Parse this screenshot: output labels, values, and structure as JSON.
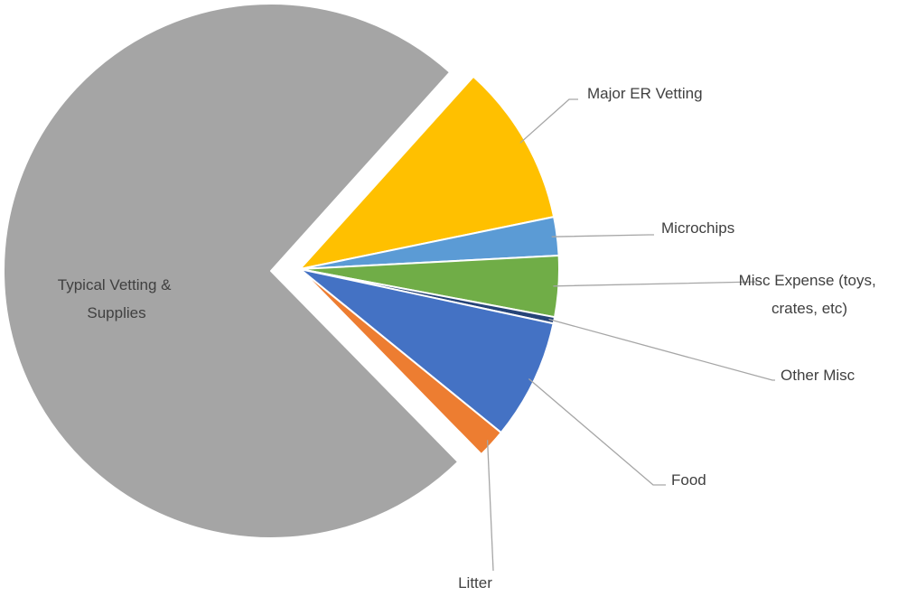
{
  "chart_data": {
    "type": "pie",
    "title": "",
    "slices": [
      {
        "label": "Major ER Vetting",
        "value": 10.1,
        "color": "#FFC000",
        "exploded": true,
        "label_lines": [
          "Major ER Vetting"
        ]
      },
      {
        "label": "Microchips",
        "value": 2.4,
        "color": "#5B9BD5",
        "exploded": true,
        "label_lines": [
          "Microchips"
        ]
      },
      {
        "label": "Misc Expense (toys, crates, etc)",
        "value": 3.8,
        "color": "#70AD47",
        "exploded": true,
        "label_lines": [
          "Misc Expense (toys,",
          "crates, etc)"
        ]
      },
      {
        "label": "Other Misc",
        "value": 0.4,
        "color": "#264478",
        "exploded": true,
        "label_lines": [
          "Other Misc"
        ]
      },
      {
        "label": "Food",
        "value": 7.5,
        "color": "#4472C4",
        "exploded": true,
        "label_lines": [
          "Food"
        ]
      },
      {
        "label": "Litter",
        "value": 1.8,
        "color": "#ED7D31",
        "exploded": true,
        "label_lines": [
          "Litter"
        ]
      },
      {
        "label": "Typical Vetting & Supplies",
        "value": 74.0,
        "color": "#A5A5A5",
        "exploded": false,
        "label_lines": [
          "Typical Vetting &",
          "Supplies"
        ]
      }
    ],
    "legend": "none",
    "data_labels": "category name with leader lines"
  }
}
